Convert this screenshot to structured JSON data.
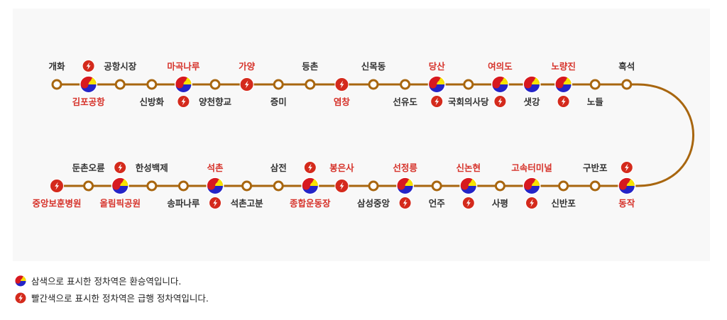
{
  "colors": {
    "line": "#a8660f",
    "red_text": "#d6322a",
    "black_text": "#333333",
    "express": "#d42a1c",
    "taeguk_red": "#d7191f",
    "taeguk_yellow": "#f7e500",
    "taeguk_blue": "#2424c8"
  },
  "top_row": [
    {
      "name": "개화",
      "side": "above",
      "transfer": false,
      "express": false,
      "red": false
    },
    {
      "name": "김포공항",
      "side": "below",
      "transfer": true,
      "express": true,
      "red": true
    },
    {
      "name": "공항시장",
      "side": "above",
      "transfer": false,
      "express": false,
      "red": false
    },
    {
      "name": "신방화",
      "side": "below",
      "transfer": false,
      "express": false,
      "red": false
    },
    {
      "name": "마곡나루",
      "side": "above",
      "transfer": true,
      "express": true,
      "red": true
    },
    {
      "name": "양천향교",
      "side": "below",
      "transfer": false,
      "express": false,
      "red": false
    },
    {
      "name": "가양",
      "side": "above",
      "transfer": false,
      "express": true,
      "red": true
    },
    {
      "name": "증미",
      "side": "below",
      "transfer": false,
      "express": false,
      "red": false
    },
    {
      "name": "등촌",
      "side": "above",
      "transfer": false,
      "express": false,
      "red": false
    },
    {
      "name": "염창",
      "side": "below",
      "transfer": false,
      "express": true,
      "red": true
    },
    {
      "name": "신목동",
      "side": "above",
      "transfer": false,
      "express": false,
      "red": false
    },
    {
      "name": "선유도",
      "side": "below",
      "transfer": false,
      "express": false,
      "red": false
    },
    {
      "name": "당산",
      "side": "above",
      "transfer": true,
      "express": true,
      "red": true
    },
    {
      "name": "국회의사당",
      "side": "below",
      "transfer": false,
      "express": false,
      "red": false
    },
    {
      "name": "여의도",
      "side": "above",
      "transfer": true,
      "express": true,
      "red": true
    },
    {
      "name": "샛강",
      "side": "below",
      "transfer": true,
      "express": false,
      "red": false
    },
    {
      "name": "노량진",
      "side": "above",
      "transfer": true,
      "express": true,
      "red": true
    },
    {
      "name": "노들",
      "side": "below",
      "transfer": false,
      "express": false,
      "red": false
    },
    {
      "name": "흑석",
      "side": "above",
      "transfer": false,
      "express": false,
      "red": false
    }
  ],
  "bottom_row": [
    {
      "name": "중앙보훈병원",
      "side": "below",
      "transfer": false,
      "express": true,
      "red": true
    },
    {
      "name": "둔촌오륜",
      "side": "above",
      "transfer": false,
      "express": false,
      "red": false
    },
    {
      "name": "올림픽공원",
      "side": "below",
      "transfer": true,
      "express": true,
      "red": true
    },
    {
      "name": "한성백제",
      "side": "above",
      "transfer": false,
      "express": false,
      "red": false
    },
    {
      "name": "송파나루",
      "side": "below",
      "transfer": false,
      "express": false,
      "red": false
    },
    {
      "name": "석촌",
      "side": "above",
      "transfer": true,
      "express": true,
      "red": true
    },
    {
      "name": "석촌고분",
      "side": "below",
      "transfer": false,
      "express": false,
      "red": false
    },
    {
      "name": "삼전",
      "side": "above",
      "transfer": false,
      "express": false,
      "red": false
    },
    {
      "name": "종합운동장",
      "side": "below",
      "transfer": true,
      "express": true,
      "red": true
    },
    {
      "name": "봉은사",
      "side": "above",
      "transfer": false,
      "express": true,
      "red": true
    },
    {
      "name": "삼성중앙",
      "side": "below",
      "transfer": false,
      "express": false,
      "red": false
    },
    {
      "name": "선정릉",
      "side": "above",
      "transfer": true,
      "express": true,
      "red": true
    },
    {
      "name": "언주",
      "side": "below",
      "transfer": false,
      "express": false,
      "red": false
    },
    {
      "name": "신논현",
      "side": "above",
      "transfer": true,
      "express": true,
      "red": true
    },
    {
      "name": "사평",
      "side": "below",
      "transfer": false,
      "express": false,
      "red": false
    },
    {
      "name": "고속터미널",
      "side": "above",
      "transfer": true,
      "express": true,
      "red": true
    },
    {
      "name": "신반포",
      "side": "below",
      "transfer": false,
      "express": false,
      "red": false
    },
    {
      "name": "구반포",
      "side": "above",
      "transfer": false,
      "express": false,
      "red": false
    },
    {
      "name": "동작",
      "side": "below",
      "transfer": true,
      "express": true,
      "red": true
    }
  ],
  "legend": {
    "transfer_icon": "taeguk-transfer-icon",
    "transfer_text": "삼색으로 표시한 정차역은 환승역입니다.",
    "express_icon": "express-lightning-icon",
    "express_text": "빨간색으로 표시한 정차역은 급행 정차역입니다."
  }
}
